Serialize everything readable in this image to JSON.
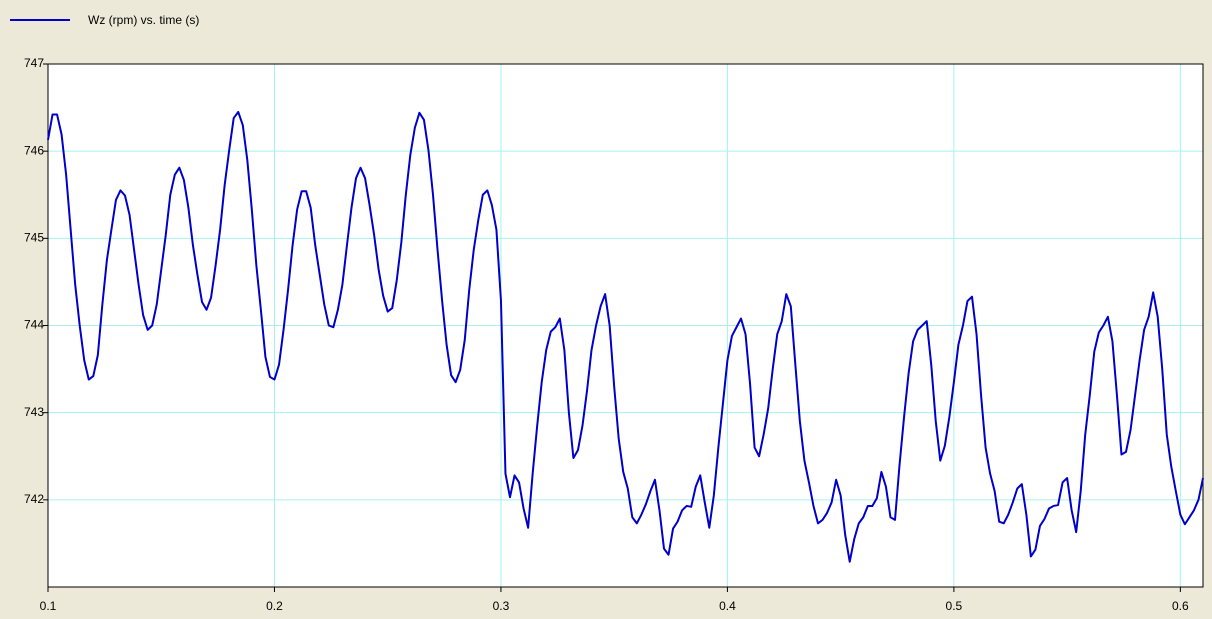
{
  "chart_data": {
    "type": "line",
    "series": [
      {
        "name": "Wz (rpm)  vs. time (s)",
        "color": "#0000cc",
        "values": [
          746.13,
          746.42,
          746.42,
          746.19,
          745.73,
          745.1,
          744.47,
          744.0,
          743.6,
          743.38,
          743.42,
          743.66,
          744.24,
          744.75,
          745.1,
          745.44,
          745.55,
          745.49,
          745.27,
          744.87,
          744.47,
          744.12,
          743.95,
          744.0,
          744.24,
          744.64,
          745.04,
          745.5,
          745.73,
          745.81,
          745.67,
          745.35,
          744.92,
          744.58,
          744.27,
          744.18,
          744.32,
          744.69,
          745.1,
          745.61,
          746.01,
          746.38,
          746.45,
          746.3,
          745.9,
          745.33,
          744.69,
          744.18,
          743.64,
          743.41,
          743.38,
          743.55,
          743.95,
          744.41,
          744.92,
          745.33,
          745.54,
          745.54,
          745.35,
          744.92,
          744.58,
          744.24,
          744.0,
          743.98,
          744.18,
          744.47,
          744.92,
          745.35,
          745.69,
          745.81,
          745.69,
          745.38,
          745.04,
          744.64,
          744.34,
          744.16,
          744.2,
          744.52,
          744.95,
          745.5,
          745.96,
          746.27,
          746.44,
          746.36,
          746.01,
          745.5,
          744.87,
          744.29,
          743.78,
          743.43,
          743.35,
          743.49,
          743.83,
          744.41,
          744.87,
          745.21,
          745.5,
          745.55,
          745.38,
          745.1,
          744.29,
          742.3,
          742.03,
          742.28,
          742.2,
          741.9,
          741.68,
          742.3,
          742.85,
          743.35,
          743.72,
          743.93,
          743.98,
          744.08,
          743.72,
          743.0,
          742.48,
          742.57,
          742.85,
          743.25,
          743.72,
          744.0,
          744.22,
          744.36,
          744.0,
          743.3,
          742.7,
          742.32,
          742.13,
          741.8,
          741.73,
          741.83,
          741.95,
          742.1,
          742.23,
          741.88,
          741.44,
          741.37,
          741.67,
          741.75,
          741.88,
          741.93,
          741.92,
          742.15,
          742.28,
          741.97,
          741.68,
          742.05,
          742.6,
          743.1,
          743.6,
          743.88,
          743.98,
          744.08,
          743.9,
          743.33,
          742.6,
          742.5,
          742.75,
          743.05,
          743.5,
          743.9,
          744.05,
          744.36,
          744.22,
          743.55,
          742.9,
          742.45,
          742.2,
          741.93,
          741.73,
          741.77,
          741.85,
          741.97,
          742.23,
          742.05,
          741.6,
          741.29,
          741.55,
          741.73,
          741.8,
          741.93,
          741.93,
          742.02,
          742.32,
          742.15,
          741.8,
          741.77,
          742.4,
          742.95,
          743.45,
          743.82,
          743.95,
          744.0,
          744.05,
          743.55,
          742.9,
          742.45,
          742.62,
          742.95,
          743.35,
          743.78,
          744.0,
          744.28,
          744.33,
          743.9,
          743.2,
          742.6,
          742.3,
          742.1,
          741.75,
          741.73,
          741.83,
          741.97,
          742.13,
          742.18,
          741.83,
          741.35,
          741.43,
          741.7,
          741.78,
          741.9,
          741.93,
          741.94,
          742.2,
          742.25,
          741.88,
          741.63,
          742.1,
          742.75,
          743.2,
          743.7,
          743.92,
          744.0,
          744.1,
          743.82,
          743.2,
          742.52,
          742.55,
          742.8,
          743.2,
          743.6,
          743.95,
          744.1,
          744.38,
          744.1,
          743.5,
          742.75,
          742.38,
          742.1,
          741.83,
          741.72,
          741.8,
          741.88,
          742.0,
          742.25
        ]
      }
    ],
    "x": [
      0.1,
      0.102,
      0.104,
      0.106,
      0.108,
      0.11,
      0.112,
      0.114,
      0.116,
      0.118,
      0.12,
      0.122,
      0.124,
      0.126,
      0.128,
      0.13,
      0.132,
      0.134,
      0.136,
      0.138,
      0.14,
      0.142,
      0.144,
      0.146,
      0.148,
      0.15,
      0.152,
      0.154,
      0.156,
      0.158,
      0.16,
      0.162,
      0.164,
      0.166,
      0.168,
      0.17,
      0.172,
      0.174,
      0.176,
      0.178,
      0.18,
      0.182,
      0.184,
      0.186,
      0.188,
      0.19,
      0.192,
      0.194,
      0.196,
      0.198,
      0.2,
      0.202,
      0.204,
      0.206,
      0.208,
      0.21,
      0.212,
      0.214,
      0.216,
      0.218,
      0.22,
      0.222,
      0.224,
      0.226,
      0.228,
      0.23,
      0.232,
      0.234,
      0.236,
      0.238,
      0.24,
      0.242,
      0.244,
      0.246,
      0.248,
      0.25,
      0.252,
      0.254,
      0.256,
      0.258,
      0.26,
      0.262,
      0.264,
      0.266,
      0.268,
      0.27,
      0.272,
      0.274,
      0.276,
      0.278,
      0.28,
      0.282,
      0.284,
      0.286,
      0.288,
      0.29,
      0.292,
      0.294,
      0.296,
      0.298,
      0.3,
      0.302,
      0.304,
      0.306,
      0.308,
      0.31,
      0.312,
      0.314,
      0.316,
      0.318,
      0.32,
      0.322,
      0.324,
      0.326,
      0.328,
      0.33,
      0.332,
      0.334,
      0.336,
      0.338,
      0.34,
      0.342,
      0.344,
      0.346,
      0.348,
      0.35,
      0.352,
      0.354,
      0.356,
      0.358,
      0.36,
      0.362,
      0.364,
      0.366,
      0.368,
      0.37,
      0.372,
      0.374,
      0.376,
      0.378,
      0.38,
      0.382,
      0.384,
      0.386,
      0.388,
      0.39,
      0.392,
      0.394,
      0.396,
      0.398,
      0.4,
      0.402,
      0.404,
      0.406,
      0.408,
      0.41,
      0.412,
      0.414,
      0.416,
      0.418,
      0.42,
      0.422,
      0.424,
      0.426,
      0.428,
      0.43,
      0.432,
      0.434,
      0.436,
      0.438,
      0.44,
      0.442,
      0.444,
      0.446,
      0.448,
      0.45,
      0.452,
      0.454,
      0.456,
      0.458,
      0.46,
      0.462,
      0.464,
      0.466,
      0.468,
      0.47,
      0.472,
      0.474,
      0.476,
      0.478,
      0.48,
      0.482,
      0.484,
      0.486,
      0.488,
      0.49,
      0.492,
      0.494,
      0.496,
      0.498,
      0.5,
      0.502,
      0.504,
      0.506,
      0.508,
      0.51,
      0.512,
      0.514,
      0.516,
      0.518,
      0.52,
      0.522,
      0.524,
      0.526,
      0.528,
      0.53,
      0.532,
      0.534,
      0.536,
      0.538,
      0.54,
      0.542,
      0.544,
      0.546,
      0.548,
      0.55,
      0.552,
      0.554,
      0.556,
      0.558,
      0.56,
      0.562,
      0.564,
      0.566,
      0.568,
      0.57,
      0.572,
      0.574,
      0.576,
      0.578,
      0.58,
      0.582,
      0.584,
      0.586,
      0.588,
      0.59,
      0.592,
      0.594,
      0.596,
      0.598,
      0.6,
      0.602,
      0.604,
      0.606,
      0.608,
      0.61
    ],
    "xlim": [
      0.1,
      0.61
    ],
    "ylim": [
      741,
      747
    ],
    "xticks": [
      0.1,
      0.2,
      0.3,
      0.4,
      0.5,
      0.6
    ],
    "yticks": [
      742,
      743,
      744,
      745,
      746,
      747
    ],
    "grid": true
  }
}
